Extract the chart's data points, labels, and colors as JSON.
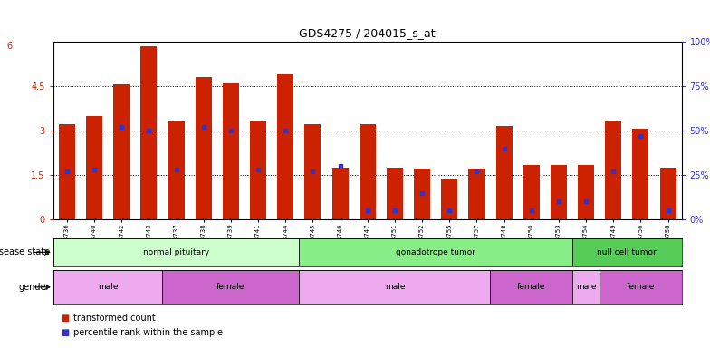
{
  "title": "GDS4275 / 204015_s_at",
  "samples": [
    "GSM663736",
    "GSM663740",
    "GSM663742",
    "GSM663743",
    "GSM663737",
    "GSM663738",
    "GSM663739",
    "GSM663741",
    "GSM663744",
    "GSM663745",
    "GSM663746",
    "GSM663747",
    "GSM663751",
    "GSM663752",
    "GSM663755",
    "GSM663757",
    "GSM663748",
    "GSM663750",
    "GSM663753",
    "GSM663754",
    "GSM663749",
    "GSM663756",
    "GSM663758"
  ],
  "transformed_count": [
    3.2,
    3.5,
    4.55,
    5.85,
    3.3,
    4.8,
    4.6,
    3.3,
    4.9,
    3.2,
    1.75,
    3.2,
    1.75,
    1.7,
    1.35,
    1.7,
    3.15,
    1.85,
    1.85,
    1.85,
    3.3,
    3.05,
    1.75
  ],
  "percentile": [
    27,
    28,
    52,
    50,
    28,
    52,
    50,
    28,
    50,
    27,
    30,
    5,
    5,
    15,
    5,
    27,
    40,
    5,
    10,
    10,
    27,
    47,
    5
  ],
  "ylim_left": [
    0,
    6
  ],
  "ylim_right": [
    0,
    100
  ],
  "yticks_left": [
    0,
    1.5,
    3.0,
    4.5
  ],
  "ytick_labels_left": [
    "0",
    "1.5",
    "3",
    "4.5"
  ],
  "yticks_right": [
    0,
    25,
    50,
    75,
    100
  ],
  "bar_color": "#cc2200",
  "percentile_color": "#3333cc",
  "disease_state": [
    {
      "label": "normal pituitary",
      "start": 0,
      "end": 9,
      "color": "#ccffcc"
    },
    {
      "label": "gonadotrope tumor",
      "start": 9,
      "end": 19,
      "color": "#88ee88"
    },
    {
      "label": "null cell tumor",
      "start": 19,
      "end": 23,
      "color": "#55cc55"
    }
  ],
  "gender": [
    {
      "label": "male",
      "start": 0,
      "end": 4,
      "color": "#eeaaee"
    },
    {
      "label": "female",
      "start": 4,
      "end": 9,
      "color": "#cc66cc"
    },
    {
      "label": "male",
      "start": 9,
      "end": 16,
      "color": "#eeaaee"
    },
    {
      "label": "female",
      "start": 16,
      "end": 19,
      "color": "#cc66cc"
    },
    {
      "label": "male",
      "start": 19,
      "end": 20,
      "color": "#eeaaee"
    },
    {
      "label": "female",
      "start": 20,
      "end": 23,
      "color": "#cc66cc"
    }
  ],
  "legend_items": [
    {
      "label": "transformed count",
      "color": "#cc2200"
    },
    {
      "label": "percentile rank within the sample",
      "color": "#3333cc"
    }
  ],
  "disease_state_label": "disease state",
  "gender_label": "gender",
  "background_color": "#ffffff",
  "plot_bg_color": "#ffffff",
  "grid_color": "#000000",
  "tick_label_color_left": "#cc2200",
  "tick_label_color_right": "#3333cc"
}
